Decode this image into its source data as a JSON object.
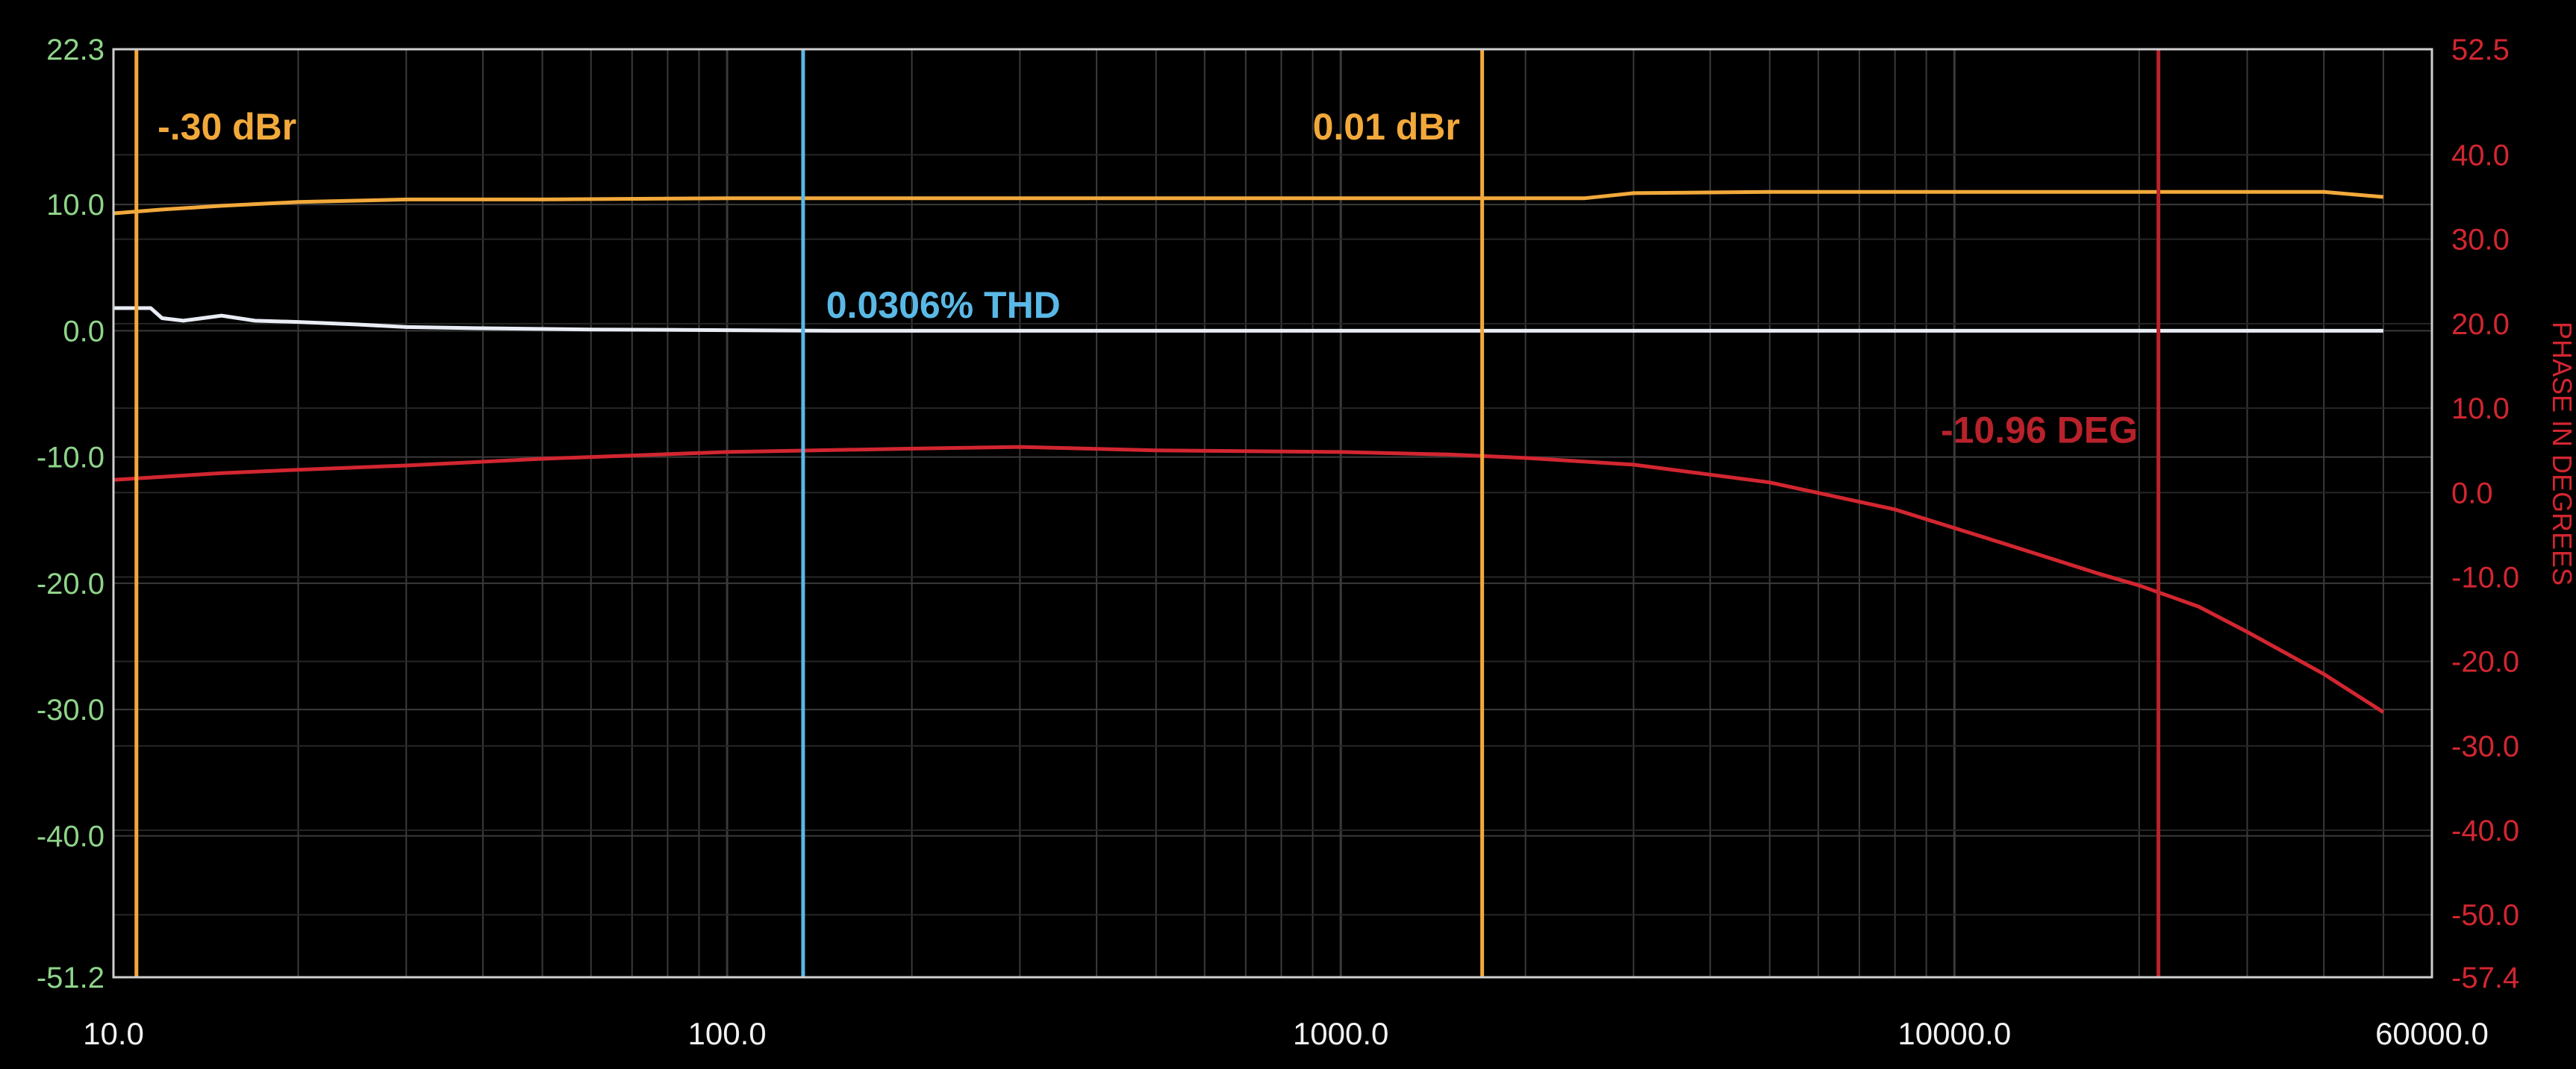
{
  "chart_data": {
    "type": "line",
    "x_scale": "log",
    "xlim": [
      10,
      60000
    ],
    "ylim_left": [
      -51.2,
      22.3
    ],
    "ylim_right": [
      -57.4,
      52.5
    ],
    "grid": true,
    "x_ticks": [
      10,
      100,
      1000,
      10000,
      60000
    ],
    "x_tick_labels": [
      "10.0",
      "100.0",
      "1000.0",
      "10000.0",
      "60000.0"
    ],
    "left_ticks": [
      22.3,
      10,
      0,
      -10,
      -20,
      -30,
      -40,
      -51.2
    ],
    "left_tick_labels": [
      "22.3",
      "10.0",
      "0.0",
      "-10.0",
      "-20.0",
      "-30.0",
      "-40.0",
      "-51.2"
    ],
    "right_ticks": [
      52.5,
      40,
      30,
      20,
      10,
      0,
      -10,
      -20,
      -30,
      -40,
      -50,
      -57.4
    ],
    "right_tick_labels": [
      "52.5",
      "40.0",
      "30.0",
      "20.0",
      "10.0",
      "0.0",
      "-10.0",
      "-20.0",
      "-30.0",
      "-40.0",
      "-50.0",
      "-57.4"
    ],
    "right_axis_label": "PHASE IN DEGREES",
    "colors": {
      "left_ticks": "#8fd48a",
      "right_ticks": "#d22630",
      "x_ticks": "#f2f2f2",
      "grid": "#3a3a3a",
      "frame": "#cfcfcf",
      "background": "#000000"
    },
    "series": [
      {
        "axis": "left",
        "color": "#f2a93b",
        "x": [
          10,
          12,
          15,
          20,
          30,
          50,
          100,
          200,
          500,
          1000,
          1700,
          2500,
          3000,
          5000,
          10000,
          20000,
          40000,
          50000
        ],
        "y": [
          9.3,
          9.6,
          9.9,
          10.2,
          10.4,
          10.4,
          10.5,
          10.5,
          10.5,
          10.5,
          10.5,
          10.5,
          10.9,
          11.0,
          11.0,
          11.0,
          11.0,
          10.6
        ]
      },
      {
        "axis": "left",
        "color": "#e8ecf5",
        "x": [
          10,
          11.5,
          12,
          13,
          15,
          17,
          20,
          25,
          30,
          40,
          60,
          100,
          150,
          300,
          1000,
          10000,
          50000
        ],
        "y": [
          1.8,
          1.8,
          1.0,
          0.8,
          1.2,
          0.8,
          0.7,
          0.5,
          0.3,
          0.2,
          0.1,
          0.05,
          0.0,
          0.0,
          0.0,
          0.0,
          0.0
        ]
      },
      {
        "axis": "right",
        "color": "#d22630",
        "x": [
          10,
          15,
          20,
          30,
          50,
          100,
          200,
          300,
          500,
          1000,
          1500,
          2000,
          3000,
          5000,
          8000,
          12000,
          17000,
          20000,
          25000,
          30000,
          40000,
          50000
        ],
        "y": [
          1.5,
          2.3,
          2.7,
          3.2,
          4.0,
          4.8,
          5.2,
          5.4,
          5.0,
          4.8,
          4.5,
          4.1,
          3.3,
          1.2,
          -2.0,
          -6.0,
          -9.5,
          -11.0,
          -13.5,
          -16.5,
          -21.5,
          -26.0
        ]
      }
    ],
    "cursors": [
      {
        "x": 10.9,
        "color": "#f2a93b",
        "label": "-.30 dBr",
        "label_x": 11.8,
        "label_y": 16.2
      },
      {
        "x": 133,
        "color": "#5ab8e6",
        "label": "0.0306% THD",
        "label_x": 145,
        "label_y": 2.1
      },
      {
        "x": 1700,
        "color": "#f2a93b",
        "label": "0.01 dBr",
        "label_x": 900,
        "label_y": 16.2
      },
      {
        "x": 21500,
        "color": "#b8222b",
        "label": "-10.96 DEG",
        "label_x": 9500,
        "label_y": -7.8
      }
    ]
  }
}
